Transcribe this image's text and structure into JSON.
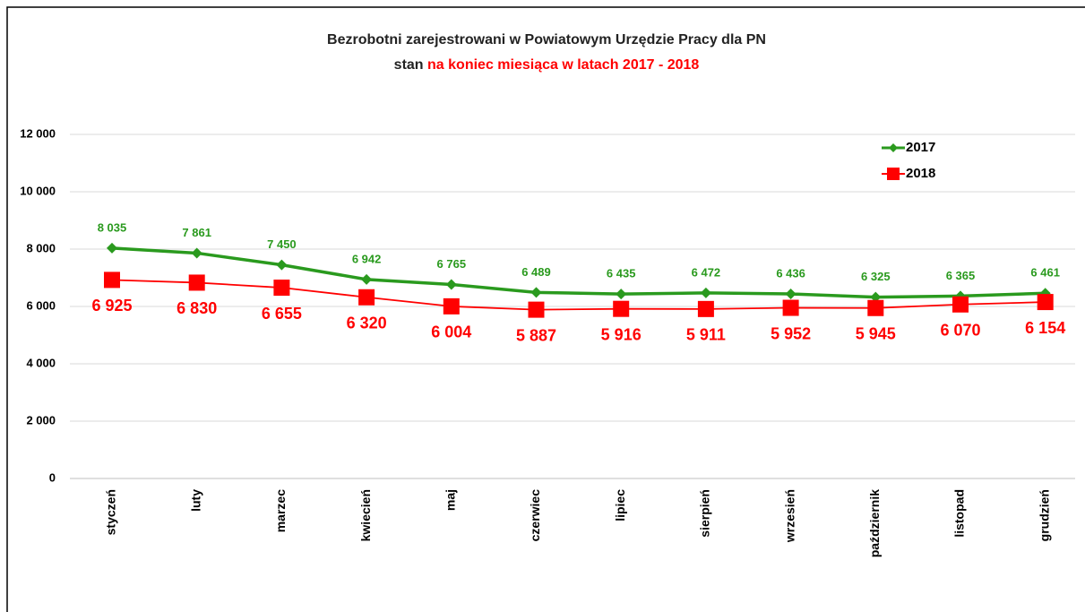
{
  "chart_data": {
    "type": "line",
    "title": "Bezrobotni zarejestrowani w Powiatowym Urzędzie Pracy dla PN",
    "subtitle": [
      "stan",
      "na koniec miesiąca w latach 2017 - 2018"
    ],
    "categories": [
      "styczeń",
      "luty",
      "marzec",
      "kwiecień",
      "maj",
      "czerwiec",
      "lipiec",
      "sierpień",
      "wrzesień",
      "październik",
      "listopad",
      "grudzień"
    ],
    "series": [
      {
        "name": "2017",
        "color": "#2a9a1e",
        "values": [
          8035,
          7861,
          7450,
          6942,
          6765,
          6489,
          6435,
          6472,
          6436,
          6325,
          6365,
          6461
        ],
        "value_labels": [
          "8 035",
          "7 861",
          "7 450",
          "6 942",
          "6 765",
          "6 489",
          "6 435",
          "6 472",
          "6 436",
          "6 325",
          "6 365",
          "6 461"
        ]
      },
      {
        "name": "2018",
        "color": "#ff0000",
        "values": [
          6925,
          6830,
          6655,
          6320,
          6004,
          5887,
          5916,
          5911,
          5952,
          5945,
          6070,
          6154
        ],
        "value_labels": [
          "6 925",
          "6 830",
          "6 655",
          "6 320",
          "6 004",
          "5 887",
          "5 916",
          "5 911",
          "5 952",
          "5 945",
          "6 070",
          "6 154"
        ]
      }
    ],
    "ylim": [
      0,
      13000
    ],
    "yticks": [
      0,
      {
        "value": 2000,
        "label": "2 000"
      },
      {
        "value": 4000,
        "label": "4 000"
      },
      {
        "value": 6000,
        "label": "6 000"
      },
      {
        "value": 8000,
        "label": "8 000"
      },
      {
        "value": 10000,
        "label": "10 000"
      },
      {
        "value": 12000,
        "label": "12 000"
      }
    ],
    "grid": true,
    "legend": "top-right"
  }
}
